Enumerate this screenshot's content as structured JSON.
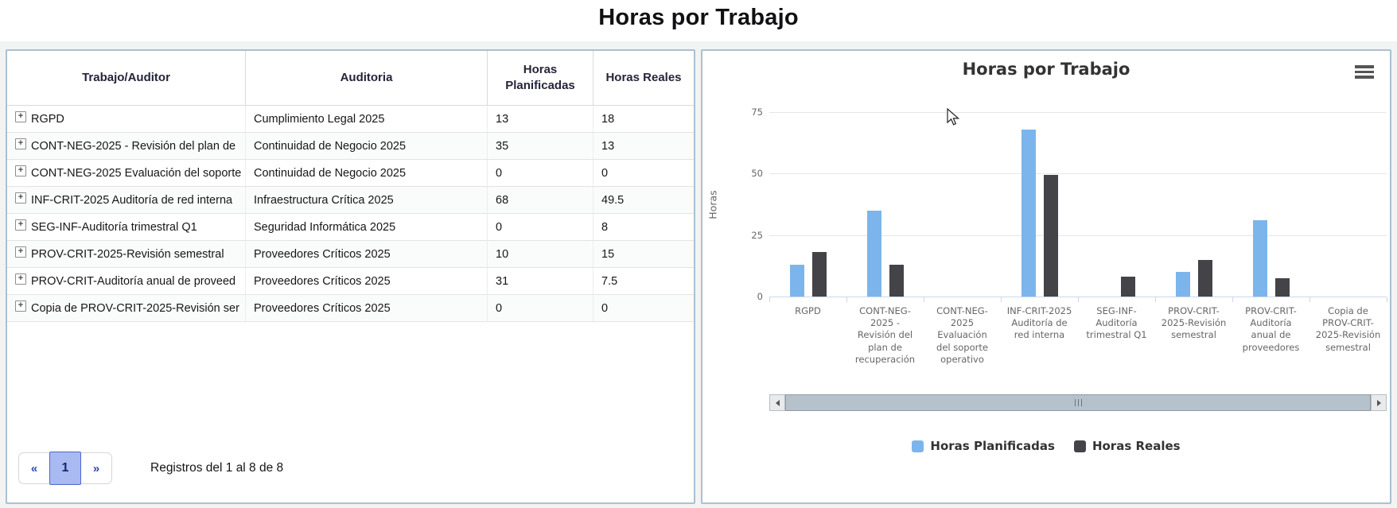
{
  "page": {
    "title": "Horas por Trabajo"
  },
  "table": {
    "columns": [
      "Trabajo/Auditor",
      "Auditoria",
      "Horas Planificadas",
      "Horas Reales"
    ],
    "expand_icon": "+",
    "rows": [
      {
        "trabajo": "RGPD",
        "auditoria": "Cumplimiento Legal 2025",
        "planificadas": "13",
        "reales": "18"
      },
      {
        "trabajo": "CONT-NEG-2025 - Revisión del plan de",
        "auditoria": "Continuidad de Negocio 2025",
        "planificadas": "35",
        "reales": "13"
      },
      {
        "trabajo": "CONT-NEG-2025 Evaluación del soporte",
        "auditoria": "Continuidad de Negocio 2025",
        "planificadas": "0",
        "reales": "0"
      },
      {
        "trabajo": "INF-CRIT-2025 Auditoría de red interna",
        "auditoria": "Infraestructura Crítica 2025",
        "planificadas": "68",
        "reales": "49.5"
      },
      {
        "trabajo": "SEG-INF-Auditoría trimestral Q1",
        "auditoria": "Seguridad Informática 2025",
        "planificadas": "0",
        "reales": "8"
      },
      {
        "trabajo": "PROV-CRIT-2025-Revisión semestral",
        "auditoria": "Proveedores Críticos 2025",
        "planificadas": "10",
        "reales": "15"
      },
      {
        "trabajo": "PROV-CRIT-Auditoría anual de proveed",
        "auditoria": "Proveedores Críticos 2025",
        "planificadas": "31",
        "reales": "7.5"
      },
      {
        "trabajo": "Copia de PROV-CRIT-2025-Revisión ser",
        "auditoria": "Proveedores Críticos 2025",
        "planificadas": "0",
        "reales": "0"
      }
    ],
    "pagination": {
      "prev": "«",
      "current": "1",
      "next": "»",
      "summary": "Registros del 1 al 8 de 8"
    }
  },
  "chart_data": {
    "type": "bar",
    "title": "Horas por Trabajo",
    "xlabel": "",
    "ylabel": "Horas",
    "ylim": [
      0,
      75
    ],
    "yticks": [
      0,
      25,
      50,
      75
    ],
    "grid": true,
    "legend_position": "bottom",
    "categories": [
      "RGPD",
      "CONT-NEG-2025 - Revisión del plan de recuperación",
      "CONT-NEG-2025 Evaluación del soporte operativo",
      "INF-CRIT-2025 Auditoría de red interna",
      "SEG-INF-Auditoría trimestral Q1",
      "PROV-CRIT-2025-Revisión semestral",
      "PROV-CRIT-Auditoría anual de proveedores",
      "Copia de PROV-CRIT-2025-Revisión semestral"
    ],
    "series": [
      {
        "name": "Horas Planificadas",
        "color": "#7cb5ec",
        "values": [
          13,
          35,
          0,
          68,
          0,
          10,
          31,
          0
        ]
      },
      {
        "name": "Horas Reales",
        "color": "#434348",
        "values": [
          18,
          13,
          0,
          49.5,
          8,
          15,
          7.5,
          0
        ]
      }
    ],
    "menu_icon": "hamburger-icon"
  }
}
